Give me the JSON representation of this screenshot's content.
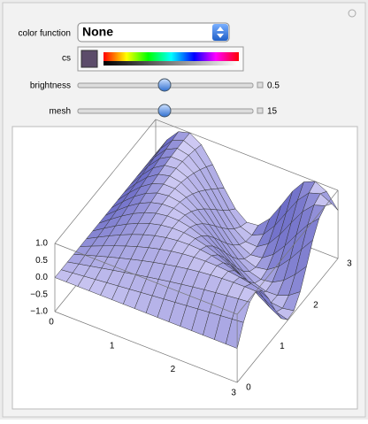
{
  "controls": {
    "color_function": {
      "label": "color function",
      "value": "None"
    },
    "cs": {
      "label": "cs"
    },
    "brightness": {
      "label": "brightness",
      "value": "0.5"
    },
    "mesh": {
      "label": "mesh",
      "value": "15"
    }
  },
  "plot": {
    "z_ticks": [
      "1.0",
      "0.5",
      "0.0",
      "−0.5",
      "−1.0"
    ],
    "x_ticks": [
      "0",
      "1",
      "2",
      "3"
    ],
    "y_ticks": [
      "0",
      "1",
      "2",
      "3"
    ]
  }
}
